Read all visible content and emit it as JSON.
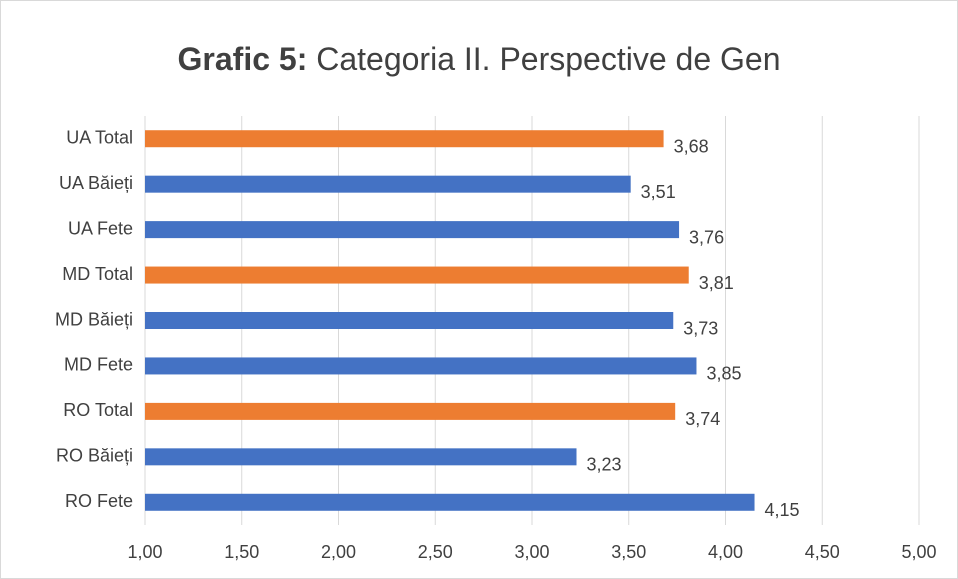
{
  "chart_data": {
    "type": "barh",
    "title_prefix": "Grafic 5:",
    "title": "Categoria II. Perspective de Gen",
    "categories": [
      "UA Total",
      "UA Băieți",
      "UA Fete",
      "MD Total",
      "MD Băieți",
      "MD Fete",
      "RO Total",
      "RO Băieți",
      "RO Fete"
    ],
    "values": [
      3.68,
      3.51,
      3.76,
      3.81,
      3.73,
      3.85,
      3.74,
      3.23,
      4.15
    ],
    "value_labels": [
      "3,68",
      "3,51",
      "3,76",
      "3,81",
      "3,73",
      "3,85",
      "3,74",
      "3,23",
      "4,15"
    ],
    "colors": [
      "#ed7d31",
      "#4472c4",
      "#4472c4",
      "#ed7d31",
      "#4472c4",
      "#4472c4",
      "#ed7d31",
      "#4472c4",
      "#4472c4"
    ],
    "xlim": [
      1,
      5
    ],
    "xticks": [
      {
        "value": 1,
        "label": "1,00"
      },
      {
        "value": 1.5,
        "label": "1,50"
      },
      {
        "value": 2,
        "label": "2,00"
      },
      {
        "value": 2.5,
        "label": "2,50"
      },
      {
        "value": 3,
        "label": "3,00"
      },
      {
        "value": 3.5,
        "label": "3,50"
      },
      {
        "value": 4,
        "label": "4,00"
      },
      {
        "value": 4.5,
        "label": "4,50"
      },
      {
        "value": 5,
        "label": "5,00"
      }
    ],
    "grid": true
  }
}
